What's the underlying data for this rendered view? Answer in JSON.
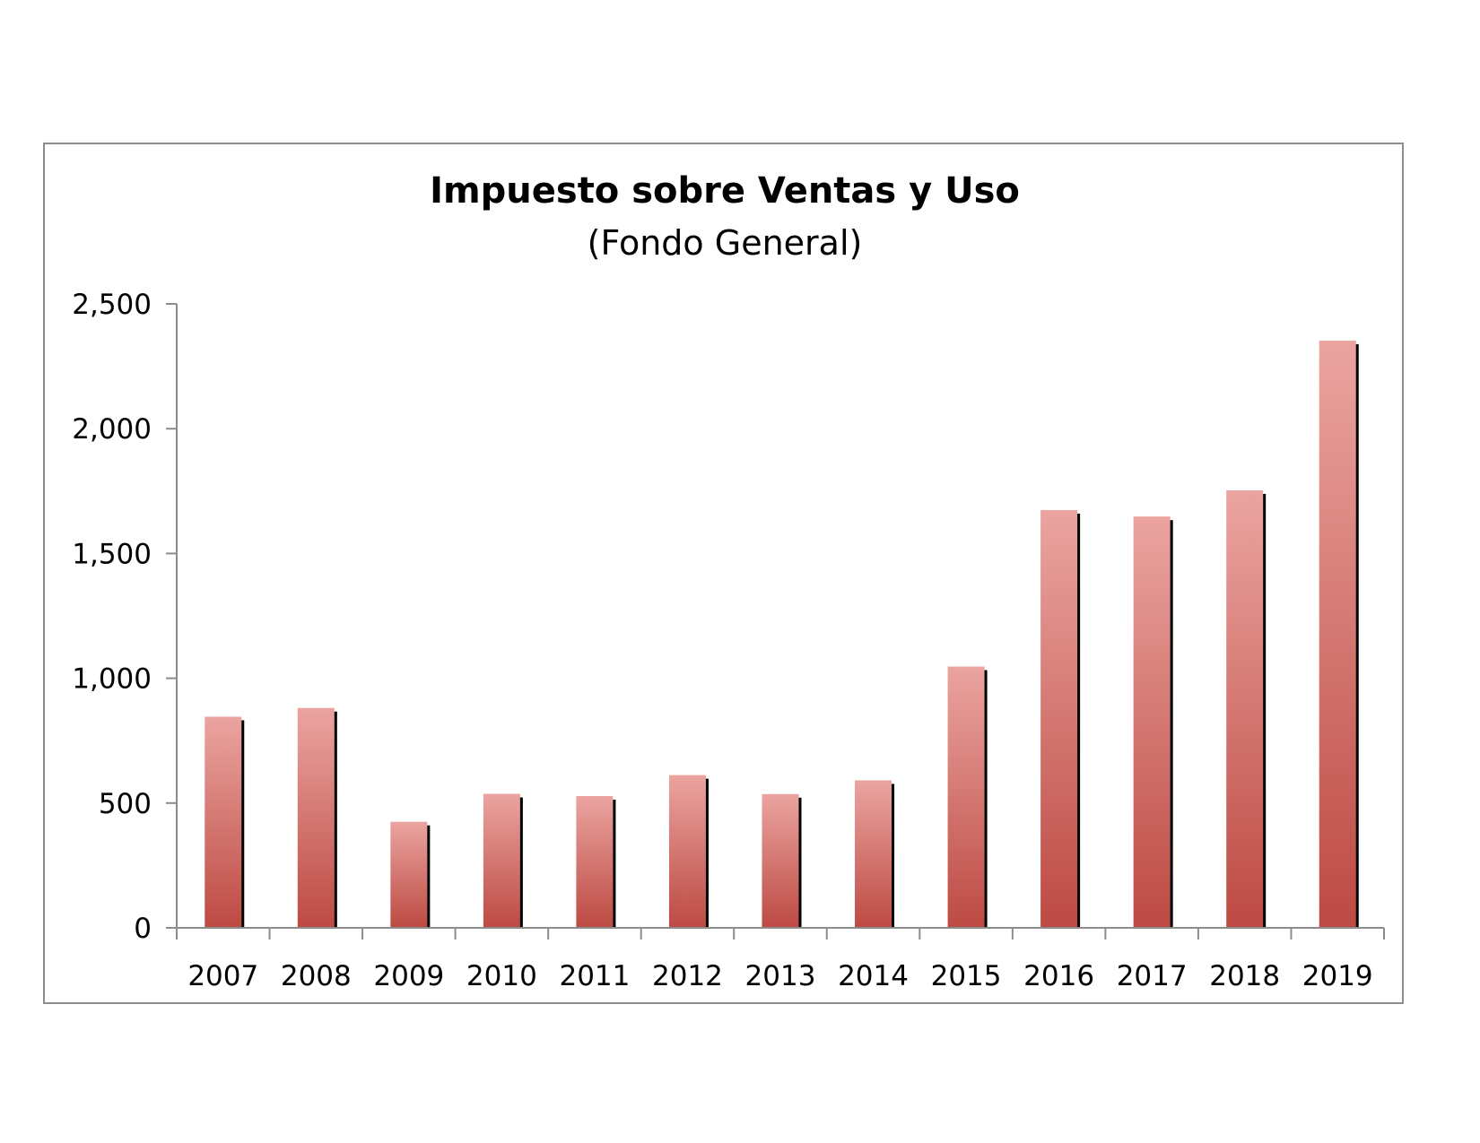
{
  "chart_data": {
    "type": "bar",
    "title": "Impuesto sobre Ventas y Uso",
    "subtitle": "(Fondo General)",
    "xlabel": "",
    "ylabel": "",
    "categories": [
      "2007",
      "2008",
      "2009",
      "2010",
      "2011",
      "2012",
      "2013",
      "2014",
      "2015",
      "2016",
      "2017",
      "2018",
      "2019"
    ],
    "values": [
      846,
      881,
      425,
      537,
      528,
      612,
      536,
      591,
      1047,
      1674,
      1648,
      1753,
      2353
    ],
    "ylim": [
      0,
      2500
    ],
    "yticks": [
      0,
      500,
      1000,
      1500,
      2000,
      2500
    ],
    "ytick_labels": [
      "0",
      "500",
      "1,000",
      "1,500",
      "2,000",
      "2,500"
    ],
    "grid": false,
    "legend": "none",
    "colors": {
      "bar_top": "#eba4a0",
      "bar_bottom": "#bd4a43",
      "bar_shadow": "#000000",
      "axis": "#8c8c8c",
      "frame": "#8c8c8c"
    }
  }
}
